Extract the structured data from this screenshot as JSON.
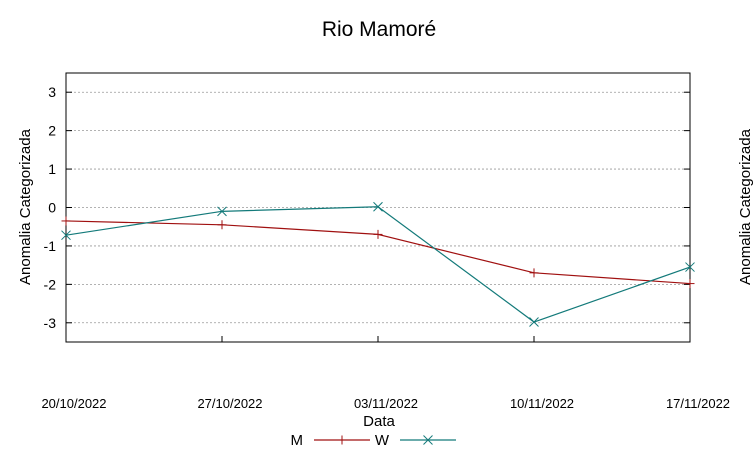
{
  "chart_data": {
    "type": "line",
    "title": "Rio Mamoré",
    "xlabel": "Data",
    "ylabel": "Anomalia Categorizada",
    "ylabel_right": "Anomalia Categorizada",
    "categories": [
      "20/10/2022",
      "27/10/2022",
      "03/11/2022",
      "10/11/2022",
      "17/11/2022"
    ],
    "x": [
      0,
      7,
      14,
      21,
      28
    ],
    "xlim": [
      0,
      28
    ],
    "ylim": [
      -3.5,
      3.5
    ],
    "yticks": [
      "3",
      "2",
      "1",
      "0",
      "-1",
      "-2",
      "-3"
    ],
    "ytick_values": [
      3,
      2,
      1,
      0,
      -1,
      -2,
      -3
    ],
    "grid": true,
    "legend_position": "bottom-center",
    "series": [
      {
        "name": "M",
        "color": "#a01010",
        "marker": "+",
        "values": [
          -0.35,
          -0.45,
          -0.7,
          -1.7,
          -1.98
        ]
      },
      {
        "name": "W",
        "color": "#137a7a",
        "marker": "x",
        "values": [
          -0.72,
          -0.1,
          0.02,
          -2.98,
          -1.55
        ]
      }
    ]
  }
}
